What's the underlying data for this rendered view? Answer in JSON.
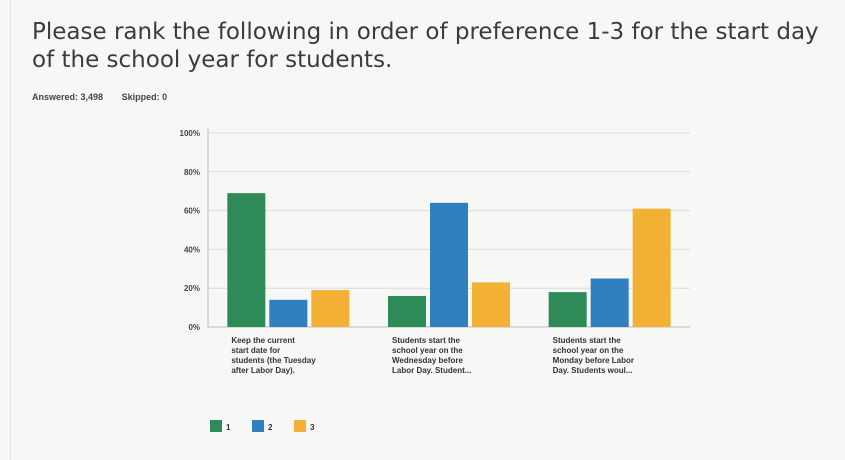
{
  "question": {
    "title": "Please rank the following in order of preference 1-3 for the start day of the school year for students."
  },
  "stats": {
    "answered": "Answered: 3,498",
    "skipped": "Skipped: 0"
  },
  "colors": {
    "series_1": "#2e8b57",
    "series_2": "#2f7fc1",
    "series_3": "#f2b134",
    "grid": "#dcdcdc"
  },
  "chart_data": {
    "type": "bar",
    "categories": [
      [
        "Keep the current",
        "start date for",
        "students (the Tuesday",
        "after Labor Day)."
      ],
      [
        "Students start the",
        "school year on the",
        "Wednesday before",
        "Labor Day. Student..."
      ],
      [
        "Students start the",
        "school year on the",
        "Monday before Labor",
        "Day. Students woul..."
      ]
    ],
    "series": [
      {
        "name": "1",
        "values": [
          69,
          16,
          18
        ]
      },
      {
        "name": "2",
        "values": [
          14,
          64,
          25
        ]
      },
      {
        "name": "3",
        "values": [
          19,
          23,
          61
        ]
      }
    ],
    "y_ticks": [
      "0%",
      "20%",
      "40%",
      "60%",
      "80%",
      "100%"
    ],
    "ylim": [
      0,
      100
    ],
    "grid": true,
    "legend": "bottom-left"
  }
}
